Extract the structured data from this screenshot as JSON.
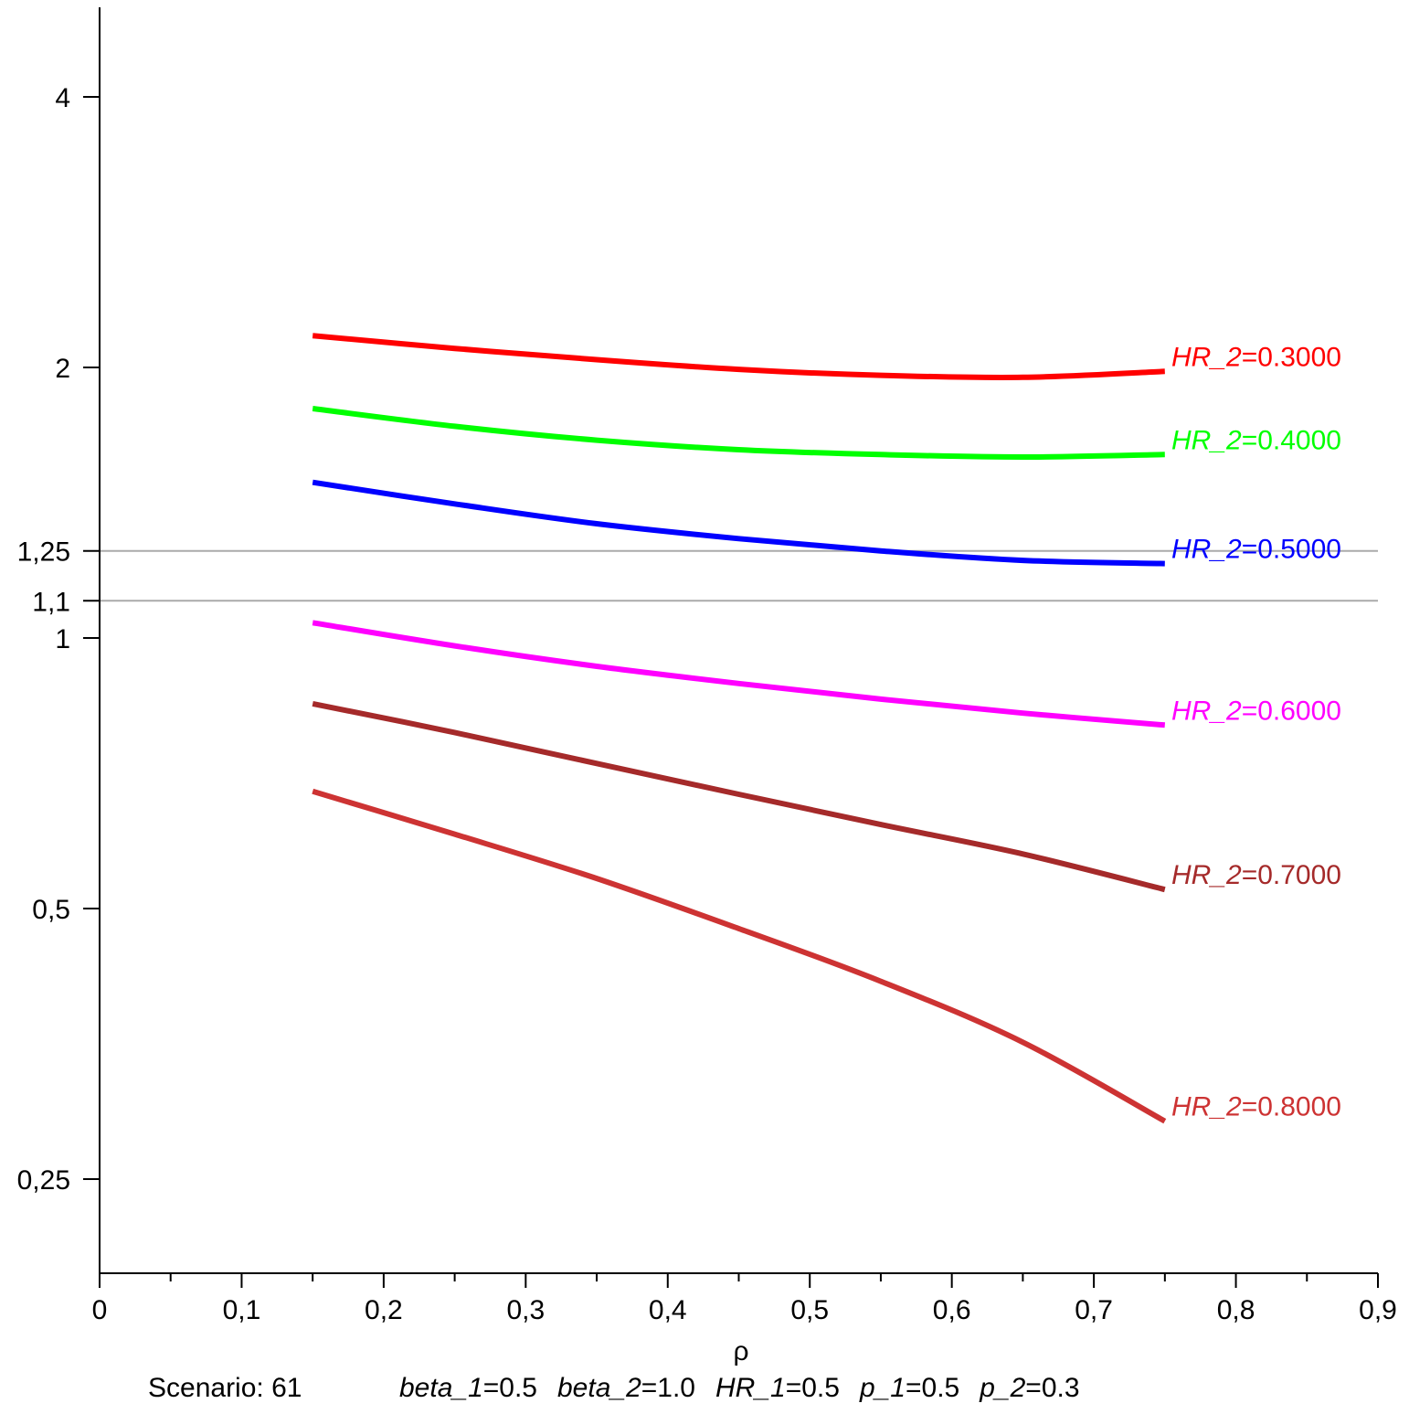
{
  "chart_data": {
    "type": "line",
    "xlabel": "ρ",
    "ylabel": "",
    "xlim": [
      0,
      0.9
    ],
    "ylim": [
      0.2,
      5
    ],
    "y_scale": "log",
    "x_ticks": [
      "0",
      "0,1",
      "0,2",
      "0,3",
      "0,4",
      "0,5",
      "0,6",
      "0,7",
      "0,8",
      "0,9"
    ],
    "x_tick_values": [
      0,
      0.1,
      0.2,
      0.3,
      0.4,
      0.5,
      0.6,
      0.7,
      0.8,
      0.9
    ],
    "y_ticks": [
      {
        "value": 4,
        "label": "4"
      },
      {
        "value": 2,
        "label": "2"
      },
      {
        "value": 1.25,
        "label": "1,25"
      },
      {
        "value": 1.1,
        "label": "1,1"
      },
      {
        "value": 1,
        "label": "1"
      },
      {
        "value": 0.5,
        "label": "0,5"
      },
      {
        "value": 0.25,
        "label": "0,25"
      }
    ],
    "reference_lines": [
      {
        "y": 1.25,
        "color": "#aaaaaa"
      },
      {
        "y": 1.1,
        "color": "#aaaaaa"
      }
    ],
    "grid": false,
    "x": [
      0.15,
      0.25,
      0.35,
      0.45,
      0.55,
      0.65,
      0.75
    ],
    "series": [
      {
        "name": "0.3000",
        "color": "#ff0000",
        "values": [
          2.17,
          2.1,
          2.04,
          1.99,
          1.96,
          1.95,
          1.98
        ]
      },
      {
        "name": "0.4000",
        "color": "#00ff00",
        "values": [
          1.8,
          1.72,
          1.66,
          1.62,
          1.6,
          1.59,
          1.6
        ]
      },
      {
        "name": "0.5000",
        "color": "#0000ff",
        "values": [
          1.49,
          1.41,
          1.34,
          1.29,
          1.25,
          1.22,
          1.21
        ]
      },
      {
        "name": "0.6000",
        "color": "#ff00ff",
        "values": [
          1.04,
          0.98,
          0.93,
          0.89,
          0.855,
          0.825,
          0.8
        ]
      },
      {
        "name": "0.7000",
        "color": "#a52a2a",
        "values": [
          0.845,
          0.785,
          0.725,
          0.67,
          0.62,
          0.575,
          0.525
        ]
      },
      {
        "name": "0.8000",
        "color": "#cd3333",
        "values": [
          0.675,
          0.605,
          0.54,
          0.475,
          0.415,
          0.355,
          0.29
        ]
      }
    ],
    "curve_label_prefix": "HR_2",
    "curve_label_eq": "=",
    "caption": {
      "scenario": "Scenario: 61",
      "params": [
        {
          "name": "beta_1",
          "value": "0.5"
        },
        {
          "name": "beta_2",
          "value": "1.0"
        },
        {
          "name": "HR_1",
          "value": "0.5"
        },
        {
          "name": "p_1",
          "value": "0.5"
        },
        {
          "name": "p_2",
          "value": "0.3"
        }
      ]
    }
  }
}
